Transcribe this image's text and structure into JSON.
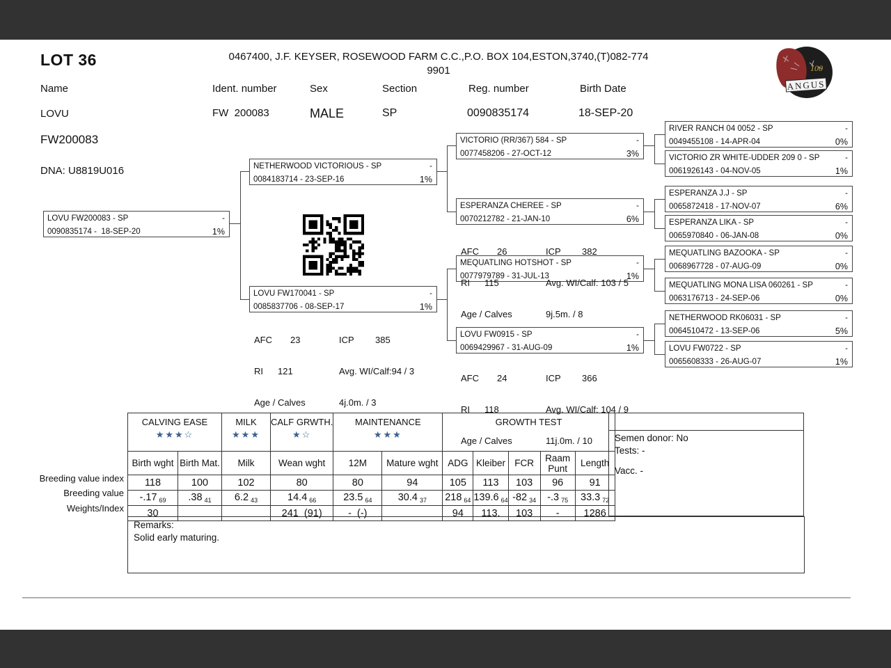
{
  "header": {
    "lot": "LOT 36",
    "breeder_line1": "0467400, J.F. KEYSER, ROSEWOOD FARM C.C.,P.O. BOX 104,ESTON,3740,(T)082-774",
    "breeder_line2": "9901",
    "labels": {
      "name": "Name",
      "ident": "Ident. number",
      "sex": "Sex",
      "section": "Section",
      "reg": "Reg. number",
      "birth": "Birth Date"
    },
    "values": {
      "name": "LOVU",
      "ident": "FW  200083",
      "sex": "MALE",
      "section": "SP",
      "reg": "0090835174",
      "birth": "18-SEP-20"
    },
    "name2": "FW200083",
    "dna": "DNA: U8819U016"
  },
  "logo": {
    "org": "ANGUS",
    "years": "100"
  },
  "pedigree": {
    "boxes": [
      {
        "name": "LOVU FW200083 - SP",
        "dash": "-",
        "reg": "0090835174 -  18-SEP-20",
        "pct": "1%"
      },
      {
        "name": "NETHERWOOD VICTORIOUS - SP",
        "dash": "-",
        "reg": "0084183714 - 23-SEP-16",
        "pct": "1%"
      },
      {
        "name": "LOVU FW170041 - SP",
        "dash": "-",
        "reg": "0085837706 - 08-SEP-17",
        "pct": "1%"
      },
      {
        "name": "VICTORIO (RR/367) 584 - SP",
        "dash": "-",
        "reg": "0077458206 - 27-OCT-12",
        "pct": "3%"
      },
      {
        "name": "ESPERANZA CHEREE - SP",
        "dash": "-",
        "reg": "0070212782 - 21-JAN-10",
        "pct": "6%"
      },
      {
        "name": "MEQUATLING HOTSHOT - SP",
        "dash": "-",
        "reg": "0077979789 - 31-JUL-13",
        "pct": "1%"
      },
      {
        "name": "LOVU FW0915 - SP",
        "dash": "-",
        "reg": "0069429967 - 31-AUG-09",
        "pct": "1%"
      },
      {
        "name": "RIVER RANCH 04 0052 - SP",
        "dash": "-",
        "reg": "0049455108 - 14-APR-04",
        "pct": "0%"
      },
      {
        "name": "VICTORIO ZR WHITE-UDDER 209 0 - SP",
        "dash": "-",
        "reg": "0061926143 - 04-NOV-05",
        "pct": "1%"
      },
      {
        "name": "ESPERANZA J.J - SP",
        "dash": "-",
        "reg": "0065872418 - 17-NOV-07",
        "pct": "6%"
      },
      {
        "name": "ESPERANZA LIKA - SP",
        "dash": "-",
        "reg": "0065970840 - 06-JAN-08",
        "pct": "0%"
      },
      {
        "name": "MEQUATLING BAZOOKA - SP",
        "dash": "-",
        "reg": "0068967728 - 07-AUG-09",
        "pct": "0%"
      },
      {
        "name": "MEQUATLING MONA LISA 060261 - SP",
        "dash": "-",
        "reg": "0063176713 - 24-SEP-06",
        "pct": "0%"
      },
      {
        "name": "NETHERWOOD RK06031 - SP",
        "dash": "-",
        "reg": "0064510472 - 13-SEP-06",
        "pct": "5%"
      },
      {
        "name": "LOVU FW0722 - SP",
        "dash": "-",
        "reg": "0065608333 - 26-AUG-07",
        "pct": "1%"
      }
    ],
    "stat_labels": {
      "afc": "AFC",
      "ri": "RI",
      "age": "Age / Calves",
      "icp": "ICP"
    },
    "stats": [
      {
        "afc": "23",
        "ri": "121",
        "icp": "385",
        "avg": "Avg. WI/Calf:94 / 3",
        "age": "4j.0m. / 3"
      },
      {
        "afc": "26",
        "ri": "115",
        "icp": "382",
        "avg": "Avg. WI/Calf: 103 / 5",
        "age": "9j.5m. / 8"
      },
      {
        "afc": "24",
        "ri": "118",
        "icp": "366",
        "avg": "Avg. WI/Calf: 104 / 9",
        "age": "11j.0m. / 10"
      }
    ]
  },
  "ebv": {
    "groups": [
      {
        "label": "CALVING EASE",
        "stars": "★★★☆"
      },
      {
        "label": "MILK",
        "stars": "★★★"
      },
      {
        "label": "CALF GRWTH.",
        "stars": "★☆"
      },
      {
        "label": "MAINTENANCE",
        "stars": "★★★"
      },
      {
        "label": "GROWTH TEST",
        "stars": ""
      }
    ],
    "columns": [
      "Birth wght",
      "Birth Mat.",
      "Milk",
      "Wean wght",
      "12M",
      "Mature wght",
      "ADG",
      "Kleiber",
      "FCR",
      "Raam Punt",
      "Length"
    ],
    "row_labels": [
      "Breeding value index",
      "Breeding value",
      "Weights/Index"
    ],
    "index_row": [
      "118",
      "100",
      "102",
      "80",
      "80",
      "94",
      "105",
      "113",
      "103",
      "96",
      "91"
    ],
    "value_row": [
      {
        "v": "-.17",
        "a": "69"
      },
      {
        "v": ".38",
        "a": "41"
      },
      {
        "v": "6.2",
        "a": "43"
      },
      {
        "v": "14.4",
        "a": "66"
      },
      {
        "v": "23.5",
        "a": "64"
      },
      {
        "v": "30.4",
        "a": "37"
      },
      {
        "v": "218",
        "a": "64"
      },
      {
        "v": "139.6",
        "a": "64"
      },
      {
        "v": "-82",
        "a": "34"
      },
      {
        "v": "-.3",
        "a": "75"
      },
      {
        "v": "33.3",
        "a": "72"
      }
    ],
    "weights_row": [
      "30",
      "",
      "",
      "241  (91)",
      "-  (-)",
      "",
      "94",
      "113.",
      "103",
      "-",
      "1286"
    ]
  },
  "side_panel": {
    "semen_donor": "Semen donor: No",
    "tests": "Tests: -",
    "vacc": "Vacc. -"
  },
  "remarks": {
    "label": "Remarks:",
    "text": "Solid early maturing."
  },
  "colors": {
    "bar": "#323232",
    "star": "#3c6090"
  }
}
